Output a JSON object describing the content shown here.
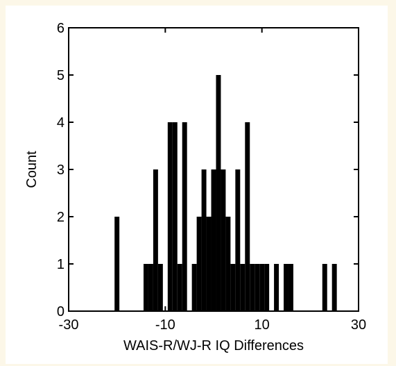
{
  "chart_data": {
    "type": "bar",
    "xlabel": "WAIS-R/WJ-R IQ Differences",
    "ylabel": "Count",
    "xlim": [
      -30,
      30
    ],
    "ylim": [
      0,
      6
    ],
    "xticks": [
      -30,
      -10,
      10,
      30
    ],
    "xtick_labels": [
      "-30",
      "-10",
      "10",
      "30"
    ],
    "yticks": [
      0,
      1,
      2,
      3,
      4,
      5,
      6
    ],
    "ytick_labels": [
      "0",
      "1",
      "2",
      "3",
      "4",
      "5",
      "6"
    ],
    "grid": false,
    "bin_width": 1,
    "bin_centers": [
      -20,
      -14,
      -13,
      -12,
      -11,
      -9,
      -8,
      -7,
      -6,
      -4,
      -3,
      -2,
      -1,
      0,
      1,
      2,
      3,
      4,
      5,
      6,
      7,
      8,
      9,
      10,
      11,
      13,
      15,
      16,
      23,
      25
    ],
    "values": [
      2,
      1,
      1,
      3,
      1,
      4,
      4,
      1,
      4,
      1,
      2,
      3,
      2,
      3,
      5,
      3,
      2,
      1,
      3,
      1,
      4,
      1,
      1,
      1,
      1,
      1,
      1,
      1,
      1,
      1
    ],
    "bar_color": "#000000"
  }
}
